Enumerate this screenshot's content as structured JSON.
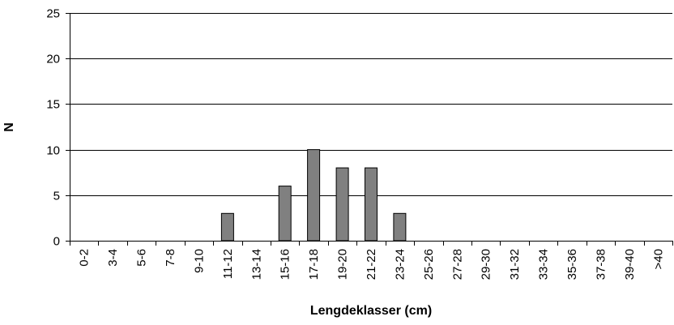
{
  "chart_data": {
    "type": "bar",
    "title": "",
    "xlabel": "Lengdeklasser (cm)",
    "ylabel": "N",
    "ylim": [
      0,
      25
    ],
    "yticks": [
      0,
      5,
      10,
      15,
      20,
      25
    ],
    "grid": true,
    "bar_color": "#808080",
    "bar_edge_color": "#000000",
    "categories": [
      "0-2",
      "3-4",
      "5-6",
      "7-8",
      "9-10",
      "11-12",
      "13-14",
      "15-16",
      "17-18",
      "19-20",
      "21-22",
      "23-24",
      "25-26",
      "27-28",
      "29-30",
      "31-32",
      "33-34",
      "35-36",
      "37-38",
      "39-40",
      ">40"
    ],
    "values": [
      0,
      0,
      0,
      0,
      0,
      3,
      0,
      6,
      10,
      8,
      8,
      3,
      0,
      0,
      0,
      0,
      0,
      0,
      0,
      0,
      0
    ]
  }
}
